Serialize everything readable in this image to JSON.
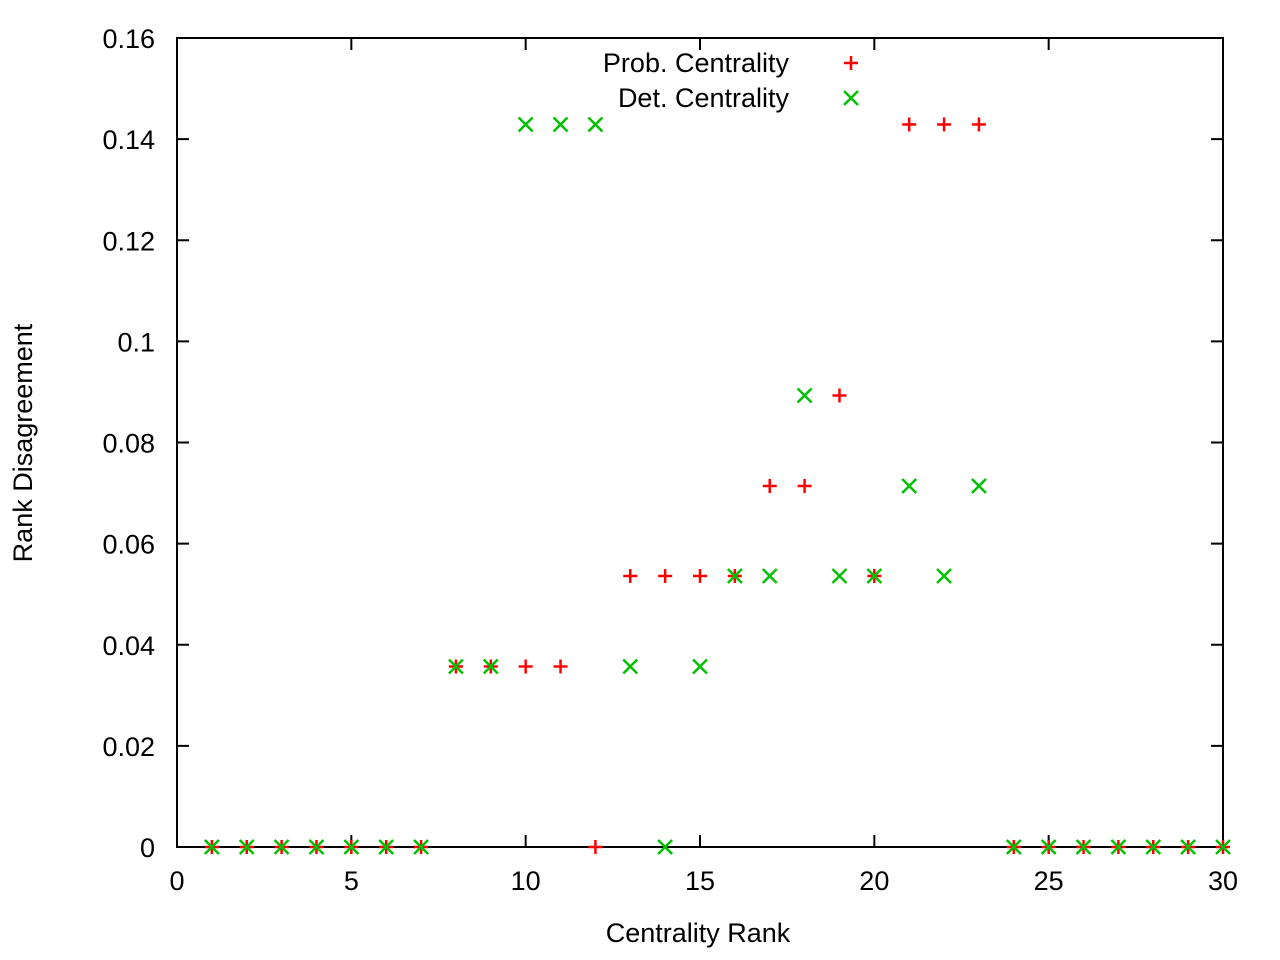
{
  "chart_data": {
    "type": "scatter",
    "xlabel": "Centrality Rank",
    "ylabel": "Rank Disagreement",
    "xlim": [
      0,
      30
    ],
    "ylim": [
      0,
      0.16
    ],
    "xticks": [
      "0",
      "5",
      "10",
      "15",
      "20",
      "25",
      "30"
    ],
    "yticks": [
      "0",
      "0.02",
      "0.04",
      "0.06",
      "0.08",
      "0.1",
      "0.12",
      "0.14",
      "0.16"
    ],
    "grid": false,
    "legend_position": "top-center",
    "series": [
      {
        "name": "Prob. Centrality",
        "marker": "plus",
        "color": "#ff0000",
        "x": [
          1,
          2,
          3,
          4,
          5,
          6,
          7,
          8,
          9,
          10,
          11,
          12,
          13,
          14,
          15,
          16,
          17,
          18,
          19,
          20,
          21,
          22,
          23,
          24,
          25,
          26,
          27,
          28,
          29,
          30
        ],
        "y": [
          0,
          0,
          0,
          0,
          0,
          0,
          0,
          0.0357,
          0.0357,
          0.0357,
          0.0357,
          0,
          0.0536,
          0.0536,
          0.0536,
          0.0536,
          0.0714,
          0.0714,
          0.0893,
          0.0536,
          0.1429,
          0.1429,
          0.1429,
          0,
          0,
          0,
          0,
          0,
          0,
          0
        ]
      },
      {
        "name": "Det. Centrality",
        "marker": "cross",
        "color": "#00c000",
        "x": [
          1,
          2,
          3,
          4,
          5,
          6,
          7,
          8,
          9,
          10,
          11,
          12,
          13,
          14,
          15,
          16,
          17,
          18,
          19,
          20,
          21,
          22,
          23,
          24,
          25,
          26,
          27,
          28,
          29,
          30
        ],
        "y": [
          0,
          0,
          0,
          0,
          0,
          0,
          0,
          0.0357,
          0.0357,
          0.1429,
          0.1429,
          0.1429,
          0.0357,
          0,
          0.0357,
          0.0536,
          0.0536,
          0.0893,
          0.0536,
          0.0536,
          0.0714,
          0.0536,
          0.0714,
          0,
          0,
          0,
          0,
          0,
          0,
          0
        ]
      }
    ]
  }
}
